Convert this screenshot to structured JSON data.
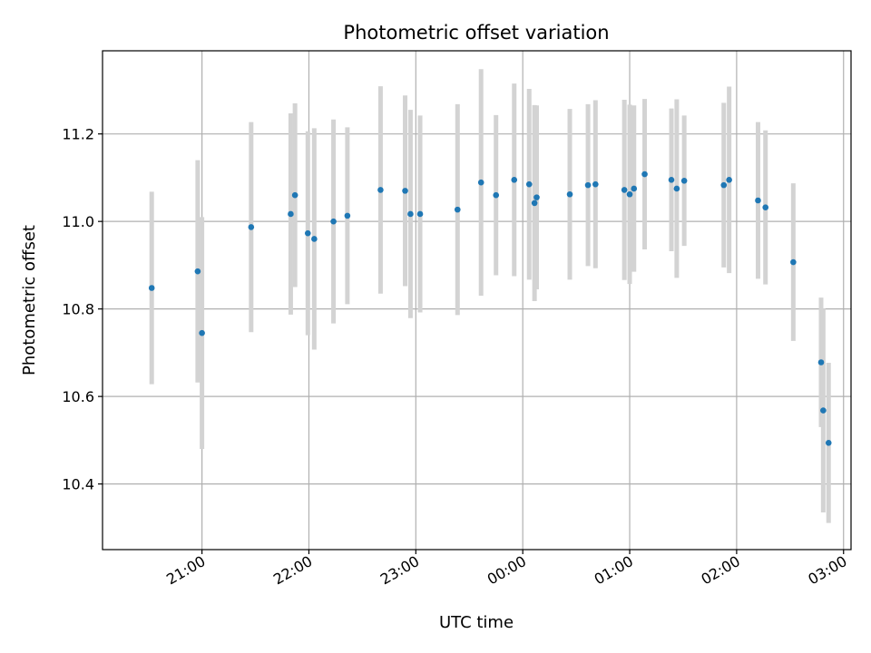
{
  "chart_data": {
    "type": "scatter",
    "title": "Photometric offset variation",
    "xlabel": "UTC time",
    "ylabel": "Photometric offset",
    "x_unit": "UTC hours (times after midnight written as 24+h)",
    "xlim": [
      20.07,
      27.07
    ],
    "ylim": [
      10.25,
      11.39
    ],
    "x_ticks": [
      21,
      22,
      23,
      24,
      25,
      26,
      27
    ],
    "x_tick_labels": [
      "21:00",
      "22:00",
      "23:00",
      "00:00",
      "01:00",
      "02:00",
      "03:00"
    ],
    "y_ticks": [
      10.4,
      10.6,
      10.8,
      11.0,
      11.2
    ],
    "y_tick_labels": [
      "10.4",
      "10.6",
      "10.8",
      "11.0",
      "11.2"
    ],
    "grid": true,
    "marker_color": "#1f77b4",
    "errorbar_color": "#d3d3d3",
    "points": [
      {
        "x": 20.53,
        "y": 10.848,
        "lo": 10.628,
        "hi": 11.068
      },
      {
        "x": 20.96,
        "y": 10.886,
        "lo": 10.632,
        "hi": 11.14
      },
      {
        "x": 21.0,
        "y": 10.745,
        "lo": 10.48,
        "hi": 11.01
      },
      {
        "x": 21.46,
        "y": 10.987,
        "lo": 10.747,
        "hi": 11.227
      },
      {
        "x": 21.83,
        "y": 11.017,
        "lo": 10.787,
        "hi": 11.247
      },
      {
        "x": 21.87,
        "y": 11.06,
        "lo": 10.85,
        "hi": 11.27
      },
      {
        "x": 21.99,
        "y": 10.973,
        "lo": 10.74,
        "hi": 11.206
      },
      {
        "x": 22.05,
        "y": 10.96,
        "lo": 10.707,
        "hi": 11.213
      },
      {
        "x": 22.23,
        "y": 11.0,
        "lo": 10.767,
        "hi": 11.233
      },
      {
        "x": 22.36,
        "y": 11.013,
        "lo": 10.811,
        "hi": 11.215
      },
      {
        "x": 22.67,
        "y": 11.072,
        "lo": 10.835,
        "hi": 11.309
      },
      {
        "x": 22.9,
        "y": 11.07,
        "lo": 10.852,
        "hi": 11.288
      },
      {
        "x": 22.95,
        "y": 11.017,
        "lo": 10.779,
        "hi": 11.255
      },
      {
        "x": 23.04,
        "y": 11.017,
        "lo": 10.792,
        "hi": 11.242
      },
      {
        "x": 23.39,
        "y": 11.027,
        "lo": 10.786,
        "hi": 11.268
      },
      {
        "x": 23.61,
        "y": 11.089,
        "lo": 10.83,
        "hi": 11.348
      },
      {
        "x": 23.75,
        "y": 11.06,
        "lo": 10.877,
        "hi": 11.243
      },
      {
        "x": 23.92,
        "y": 11.095,
        "lo": 10.875,
        "hi": 11.315
      },
      {
        "x": 24.06,
        "y": 11.085,
        "lo": 10.867,
        "hi": 11.303
      },
      {
        "x": 24.11,
        "y": 11.042,
        "lo": 10.818,
        "hi": 11.266
      },
      {
        "x": 24.13,
        "y": 11.055,
        "lo": 10.845,
        "hi": 11.265
      },
      {
        "x": 24.44,
        "y": 11.062,
        "lo": 10.867,
        "hi": 11.257
      },
      {
        "x": 24.61,
        "y": 11.083,
        "lo": 10.898,
        "hi": 11.268
      },
      {
        "x": 24.68,
        "y": 11.085,
        "lo": 10.893,
        "hi": 11.277
      },
      {
        "x": 24.95,
        "y": 11.072,
        "lo": 10.866,
        "hi": 11.278
      },
      {
        "x": 25.0,
        "y": 11.062,
        "lo": 10.857,
        "hi": 11.267
      },
      {
        "x": 25.04,
        "y": 11.075,
        "lo": 10.885,
        "hi": 11.265
      },
      {
        "x": 25.14,
        "y": 11.108,
        "lo": 10.936,
        "hi": 11.28
      },
      {
        "x": 25.39,
        "y": 11.095,
        "lo": 10.932,
        "hi": 11.258
      },
      {
        "x": 25.44,
        "y": 11.075,
        "lo": 10.871,
        "hi": 11.279
      },
      {
        "x": 25.51,
        "y": 11.093,
        "lo": 10.944,
        "hi": 11.242
      },
      {
        "x": 25.88,
        "y": 11.083,
        "lo": 10.895,
        "hi": 11.271
      },
      {
        "x": 25.93,
        "y": 11.095,
        "lo": 10.882,
        "hi": 11.308
      },
      {
        "x": 26.2,
        "y": 11.048,
        "lo": 10.869,
        "hi": 11.227
      },
      {
        "x": 26.27,
        "y": 11.032,
        "lo": 10.856,
        "hi": 11.208
      },
      {
        "x": 26.53,
        "y": 10.907,
        "lo": 10.727,
        "hi": 11.087
      },
      {
        "x": 26.79,
        "y": 10.678,
        "lo": 10.53,
        "hi": 10.826
      },
      {
        "x": 26.81,
        "y": 10.568,
        "lo": 10.335,
        "hi": 10.801
      },
      {
        "x": 26.86,
        "y": 10.494,
        "lo": 10.311,
        "hi": 10.677
      }
    ]
  }
}
